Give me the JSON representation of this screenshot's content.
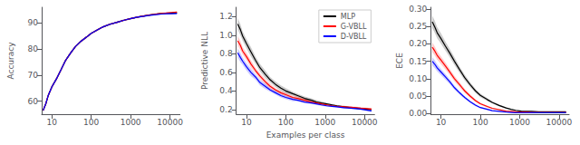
{
  "chart_data": [
    {
      "type": "line",
      "ylabel": "Accuracy",
      "x": [
        6,
        7,
        8,
        10,
        13,
        17,
        22,
        30,
        40,
        55,
        75,
        100,
        150,
        200,
        300,
        450,
        600,
        800,
        1100,
        1500,
        2000,
        3000,
        4500,
        6000,
        8000,
        11000,
        15000
      ],
      "series": [
        {
          "name": "MLP",
          "color": "black",
          "values": [
            56.5,
            59.0,
            62.0,
            65.5,
            68.5,
            72.0,
            75.5,
            78.5,
            81.0,
            83.0,
            84.5,
            86.0,
            87.5,
            88.5,
            89.5,
            90.2,
            90.8,
            91.3,
            91.8,
            92.2,
            92.6,
            93.0,
            93.4,
            93.6,
            93.7,
            93.75,
            93.8
          ],
          "std": [
            0.5,
            0.5,
            0.5,
            0.5,
            0.5,
            0.5,
            0.5,
            0.5,
            0.4,
            0.4,
            0.4,
            0.3,
            0.3,
            0.3,
            0.3,
            0.3,
            0.3,
            0.3,
            0.3,
            0.3,
            0.3,
            0.3,
            0.3,
            0.3,
            0.3,
            0.3,
            0.3
          ]
        },
        {
          "name": "G-VBLL",
          "color": "red",
          "values": [
            56.5,
            59.0,
            62.0,
            65.5,
            68.5,
            72.0,
            75.5,
            78.5,
            81.0,
            83.0,
            84.5,
            86.0,
            87.5,
            88.5,
            89.5,
            90.2,
            90.8,
            91.3,
            91.8,
            92.2,
            92.6,
            93.0,
            93.4,
            93.65,
            93.8,
            94.0,
            94.1
          ],
          "std": [
            0.5,
            0.5,
            0.5,
            0.5,
            0.5,
            0.5,
            0.5,
            0.5,
            0.4,
            0.4,
            0.4,
            0.3,
            0.3,
            0.3,
            0.3,
            0.3,
            0.3,
            0.3,
            0.3,
            0.3,
            0.3,
            0.3,
            0.3,
            0.3,
            0.3,
            0.3,
            0.3
          ]
        },
        {
          "name": "D-VBLL",
          "color": "blue",
          "values": [
            56.5,
            59.0,
            62.0,
            65.5,
            68.5,
            72.0,
            75.5,
            78.5,
            81.0,
            83.0,
            84.5,
            86.0,
            87.5,
            88.5,
            89.5,
            90.2,
            90.8,
            91.3,
            91.8,
            92.2,
            92.5,
            92.9,
            93.2,
            93.4,
            93.5,
            93.55,
            93.6
          ],
          "std": [
            0.5,
            0.5,
            0.5,
            0.5,
            0.5,
            0.5,
            0.5,
            0.5,
            0.4,
            0.4,
            0.4,
            0.3,
            0.3,
            0.3,
            0.3,
            0.3,
            0.3,
            0.3,
            0.3,
            0.3,
            0.3,
            0.3,
            0.3,
            0.3,
            0.3,
            0.3,
            0.3
          ]
        }
      ],
      "xlim": [
        5.5,
        18000
      ],
      "xticks": [
        10,
        100,
        1000,
        10000
      ],
      "ylim": [
        55,
        96
      ],
      "yticks": [
        60,
        70,
        80,
        90
      ],
      "log": "x",
      "grid": false
    },
    {
      "type": "line",
      "ylabel": "Predictive NLL",
      "xlabel": "Examples per class",
      "x": [
        6,
        7,
        8,
        10,
        13,
        17,
        22,
        30,
        40,
        55,
        75,
        100,
        150,
        200,
        300,
        450,
        600,
        800,
        1100,
        1500,
        2000,
        3000,
        4500,
        6000,
        8000,
        11000,
        15000
      ],
      "series": [
        {
          "name": "MLP",
          "color": "black",
          "values": [
            1.12,
            1.06,
            0.99,
            0.91,
            0.82,
            0.73,
            0.65,
            0.58,
            0.52,
            0.47,
            0.43,
            0.4,
            0.37,
            0.35,
            0.32,
            0.3,
            0.28,
            0.27,
            0.26,
            0.25,
            0.24,
            0.23,
            0.22,
            0.215,
            0.21,
            0.205,
            0.2
          ],
          "std": [
            0.06,
            0.06,
            0.05,
            0.05,
            0.05,
            0.04,
            0.04,
            0.04,
            0.03,
            0.03,
            0.03,
            0.03,
            0.02,
            0.02,
            0.02,
            0.02,
            0.02,
            0.02,
            0.01,
            0.01,
            0.01,
            0.01,
            0.01,
            0.01,
            0.01,
            0.01,
            0.01
          ]
        },
        {
          "name": "G-VBLL",
          "color": "red",
          "values": [
            0.94,
            0.89,
            0.83,
            0.77,
            0.69,
            0.62,
            0.56,
            0.5,
            0.45,
            0.41,
            0.38,
            0.36,
            0.33,
            0.32,
            0.3,
            0.28,
            0.27,
            0.26,
            0.25,
            0.24,
            0.235,
            0.23,
            0.225,
            0.22,
            0.215,
            0.21,
            0.205
          ],
          "std": [
            0.05,
            0.05,
            0.04,
            0.04,
            0.04,
            0.03,
            0.03,
            0.03,
            0.03,
            0.02,
            0.02,
            0.02,
            0.02,
            0.02,
            0.02,
            0.01,
            0.01,
            0.01,
            0.01,
            0.01,
            0.01,
            0.01,
            0.01,
            0.01,
            0.01,
            0.01,
            0.01
          ]
        },
        {
          "name": "D-VBLL",
          "color": "blue",
          "values": [
            0.81,
            0.76,
            0.72,
            0.66,
            0.6,
            0.55,
            0.49,
            0.45,
            0.41,
            0.38,
            0.35,
            0.33,
            0.31,
            0.3,
            0.28,
            0.27,
            0.26,
            0.25,
            0.24,
            0.235,
            0.23,
            0.22,
            0.215,
            0.21,
            0.205,
            0.195,
            0.185
          ],
          "std": [
            0.05,
            0.05,
            0.04,
            0.04,
            0.04,
            0.03,
            0.03,
            0.03,
            0.02,
            0.02,
            0.02,
            0.02,
            0.02,
            0.01,
            0.01,
            0.01,
            0.01,
            0.01,
            0.01,
            0.01,
            0.01,
            0.01,
            0.01,
            0.01,
            0.01,
            0.01,
            0.01
          ]
        }
      ],
      "xlim": [
        5.5,
        18000
      ],
      "xticks": [
        10,
        100,
        1000,
        10000
      ],
      "ylim": [
        0.15,
        1.3
      ],
      "yticks": [
        0.2,
        0.4,
        0.6,
        0.8,
        {
          "value": 1.0,
          "label": "1.0"
        },
        1.2
      ],
      "log": "x",
      "grid": false,
      "legend": "upper right"
    },
    {
      "type": "line",
      "ylabel": "ECE",
      "x": [
        6,
        7,
        8,
        10,
        13,
        17,
        22,
        30,
        40,
        55,
        75,
        100,
        150,
        200,
        300,
        450,
        600,
        800,
        1100,
        1500,
        2000,
        3000,
        4500,
        6000,
        8000,
        11000,
        15000
      ],
      "series": [
        {
          "name": "MLP",
          "color": "black",
          "values": [
            0.263,
            0.248,
            0.232,
            0.215,
            0.193,
            0.172,
            0.15,
            0.125,
            0.103,
            0.083,
            0.065,
            0.052,
            0.04,
            0.032,
            0.023,
            0.016,
            0.012,
            0.009,
            0.007,
            0.006,
            0.006,
            0.005,
            0.005,
            0.005,
            0.005,
            0.005,
            0.005
          ],
          "std": [
            0.018,
            0.017,
            0.016,
            0.015,
            0.013,
            0.012,
            0.011,
            0.009,
            0.008,
            0.007,
            0.006,
            0.005,
            0.004,
            0.003,
            0.003,
            0.002,
            0.001,
            0.001,
            0.001,
            0.001,
            0.001,
            0.001,
            0.001,
            0.001,
            0.001,
            0.001,
            0.001
          ]
        },
        {
          "name": "G-VBLL",
          "color": "red",
          "values": [
            0.19,
            0.179,
            0.167,
            0.153,
            0.136,
            0.118,
            0.1,
            0.082,
            0.065,
            0.05,
            0.037,
            0.028,
            0.02,
            0.015,
            0.011,
            0.007,
            0.006,
            0.005,
            0.004,
            0.004,
            0.003,
            0.003,
            0.003,
            0.003,
            0.003,
            0.003,
            0.003
          ],
          "std": [
            0.014,
            0.013,
            0.012,
            0.011,
            0.01,
            0.009,
            0.008,
            0.007,
            0.006,
            0.005,
            0.004,
            0.003,
            0.003,
            0.002,
            0.002,
            0.001,
            0.001,
            0.001,
            0.001,
            0.001,
            0.001,
            0.001,
            0.001,
            0.001,
            0.001,
            0.001,
            0.001
          ]
        },
        {
          "name": "D-VBLL",
          "color": "blue",
          "values": [
            0.15,
            0.141,
            0.131,
            0.119,
            0.105,
            0.09,
            0.074,
            0.059,
            0.046,
            0.034,
            0.024,
            0.017,
            0.012,
            0.008,
            0.006,
            0.004,
            0.003,
            0.002,
            0.002,
            0.002,
            0.002,
            0.002,
            0.002,
            0.002,
            0.002,
            0.002,
            0.002
          ],
          "std": [
            0.012,
            0.011,
            0.01,
            0.009,
            0.008,
            0.007,
            0.006,
            0.005,
            0.004,
            0.003,
            0.003,
            0.002,
            0.002,
            0.001,
            0.001,
            0.001,
            0.001,
            0.001,
            0.001,
            0.001,
            0.001,
            0.001,
            0.001,
            0.001,
            0.001,
            0.001,
            0.001
          ]
        }
      ],
      "xlim": [
        5.5,
        18000
      ],
      "xticks": [
        10,
        100,
        1000,
        10000
      ],
      "ylim": [
        -0.002,
        0.305
      ],
      "yticks": [
        {
          "value": 0.0,
          "label": "0.00"
        },
        0.05,
        {
          "value": 0.1,
          "label": "0.10"
        },
        0.15,
        {
          "value": 0.2,
          "label": "0.20"
        },
        0.25,
        {
          "value": 0.3,
          "label": "0.30"
        }
      ],
      "log": "x",
      "grid": false
    }
  ]
}
